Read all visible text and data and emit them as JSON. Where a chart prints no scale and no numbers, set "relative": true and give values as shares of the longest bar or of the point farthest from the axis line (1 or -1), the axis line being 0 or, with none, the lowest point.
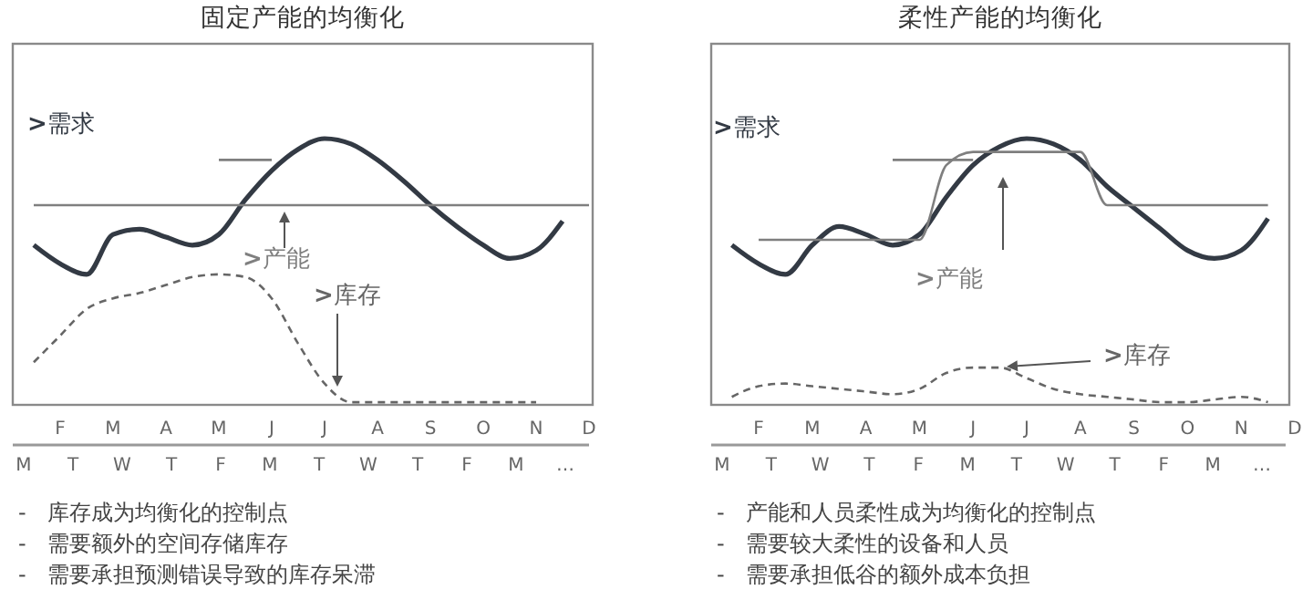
{
  "chart_data": [
    {
      "type": "line",
      "title": "固定产能的均衡化",
      "relative": true,
      "categories": [
        null,
        "F",
        null,
        "M",
        null,
        "A",
        null,
        "M",
        null,
        "J",
        null,
        "J",
        null,
        "A",
        null,
        "S",
        null,
        "O",
        null,
        "N",
        null,
        "D"
      ],
      "series": [
        {
          "name": ">需求",
          "color": "#333a44",
          "values": [
            0.6,
            0.53,
            0.49,
            0.64,
            0.66,
            0.63,
            0.6,
            0.64,
            0.77,
            0.88,
            0.96,
            1,
            0.98,
            0.92,
            0.84,
            0.75,
            0.67,
            0.6,
            0.55,
            0.58,
            0.69,
            null
          ]
        },
        {
          "name": ">产能",
          "color": "#7f7f7f",
          "values": [
            0.75,
            0.75,
            0.75,
            0.75,
            0.75,
            0.75,
            0.75,
            0.75,
            0.75,
            0.75,
            0.75,
            0.75,
            0.75,
            0.75,
            0.75,
            0.75,
            0.75,
            0.75,
            0.75,
            0.75,
            0.75,
            0.75
          ]
        },
        {
          "name": ">库存",
          "color": "#666666",
          "line_style": "dashed",
          "values": [
            0.16,
            0.26,
            0.36,
            0.4,
            0.42,
            0.45,
            0.48,
            0.49,
            0.48,
            0.4,
            0.23,
            0.08,
            0.01,
            0.01,
            0.01,
            0.01,
            0.01,
            0.01,
            0.01,
            0.01,
            null,
            null
          ]
        },
        {
          "color": "#7f7f7f",
          "values": [
            null,
            null,
            null,
            null,
            null,
            null,
            null,
            0.92,
            0.92,
            0.92,
            null,
            null,
            null,
            null,
            null,
            null,
            null,
            null,
            null,
            null,
            null,
            null
          ]
        }
      ],
      "annotations": [
        "M T W T F M T W T F M …",
        "-   库存成为均衡化的控制点",
        "-   需要额外的空间存储库存",
        "-   需要承担预测错误导致的库存呆滞"
      ]
    },
    {
      "type": "line",
      "title": "柔性产能的均衡化",
      "relative": true,
      "categories": [
        null,
        "F",
        null,
        "M",
        null,
        "A",
        null,
        "M",
        null,
        "J",
        null,
        "J",
        null,
        "A",
        null,
        "S",
        null,
        "O",
        null,
        "N",
        null,
        "D"
      ],
      "series": [
        {
          "name": ">需求",
          "color": "#333a44",
          "values": [
            0.6,
            0.53,
            0.49,
            0.6,
            0.67,
            0.64,
            0.6,
            0.64,
            0.78,
            0.9,
            0.97,
            1,
            0.98,
            0.92,
            0.82,
            0.74,
            0.66,
            0.58,
            0.55,
            0.58,
            0.7,
            null
          ]
        },
        {
          "name": ">产能",
          "color": "#7f7f7f",
          "values": [
            null,
            0.62,
            0.62,
            0.62,
            0.62,
            0.62,
            0.62,
            0.62,
            0.9,
            0.95,
            0.95,
            0.95,
            0.95,
            0.95,
            0.75,
            0.75,
            0.75,
            0.75,
            0.75,
            0.75,
            0.75,
            null
          ]
        },
        {
          "name": ">库存",
          "color": "#666666",
          "line_style": "dashed",
          "values": [
            0.03,
            0.07,
            0.08,
            0.07,
            0.06,
            0.05,
            0.04,
            0.06,
            0.12,
            0.14,
            0.14,
            0.1,
            0.06,
            0.04,
            0.03,
            0.02,
            0.01,
            0.01,
            0.02,
            0.03,
            0.01,
            null
          ]
        },
        {
          "color": "#7f7f7f",
          "values": [
            null,
            null,
            null,
            null,
            null,
            null,
            0.92,
            0.92,
            0.92,
            0.92,
            null,
            null,
            null,
            null,
            null,
            null,
            null,
            null,
            null,
            null,
            null,
            null
          ]
        }
      ],
      "annotations": [
        "M T W T F M T W T F M …",
        "-   产能和人员柔性成为均衡化的控制点",
        "-   需要较大柔性的设备和人员",
        "-   需要承担低谷的额外成本负担"
      ]
    }
  ]
}
